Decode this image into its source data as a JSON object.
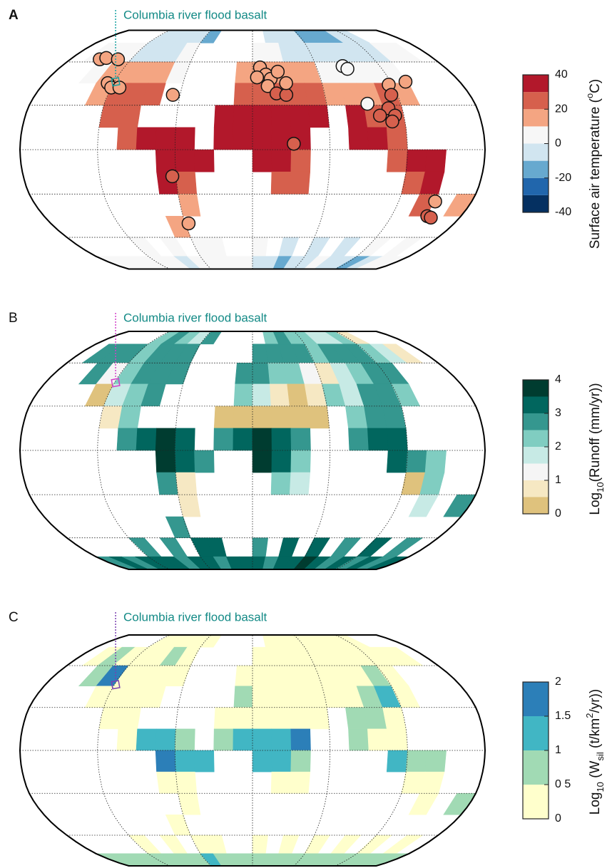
{
  "graticule": {
    "parallels": [
      -60,
      -30,
      0,
      30,
      60
    ],
    "meridians": [
      -120,
      -60,
      0,
      60,
      120
    ]
  },
  "cell_lon0": -180,
  "cell_lat0": 90,
  "cell_size": 15,
  "columbia_location": {
    "lon": -119,
    "lat": 46
  },
  "panels": [
    {
      "letter": "A",
      "annotation": "Columbia river flood basalt",
      "marker_color": "#17a2a2",
      "cells": [
        [
          null,
          null,
          null,
          null,
          -5,
          -5,
          -8,
          -5,
          -12,
          null,
          null,
          null,
          null,
          -5,
          -8,
          -10,
          -12,
          -15,
          -12,
          -10,
          -8,
          null,
          null,
          null
        ],
        [
          null,
          5,
          3,
          2,
          -2,
          -5,
          -3,
          0,
          null,
          null,
          null,
          null,
          5,
          2,
          -2,
          -5,
          -8,
          -10,
          -8,
          -5,
          -2,
          2,
          3,
          null
        ],
        [
          null,
          null,
          8,
          12,
          12,
          12,
          12,
          8,
          null,
          null,
          null,
          12,
          15,
          15,
          12,
          10,
          5,
          3,
          2,
          5,
          8,
          null,
          null,
          null
        ],
        [
          null,
          null,
          null,
          18,
          22,
          22,
          20,
          null,
          null,
          null,
          null,
          20,
          22,
          22,
          25,
          25,
          18,
          15,
          18,
          22,
          18,
          null,
          null,
          null
        ],
        [
          null,
          null,
          null,
          null,
          25,
          25,
          null,
          null,
          null,
          null,
          35,
          35,
          35,
          35,
          35,
          35,
          null,
          32,
          28,
          25,
          null,
          null,
          null,
          null
        ],
        [
          null,
          null,
          null,
          null,
          null,
          28,
          30,
          32,
          32,
          null,
          32,
          32,
          32,
          33,
          30,
          null,
          null,
          30,
          30,
          28,
          null,
          null,
          null,
          null
        ],
        [
          null,
          null,
          null,
          null,
          null,
          null,
          null,
          32,
          32,
          32,
          null,
          null,
          30,
          30,
          28,
          null,
          null,
          null,
          null,
          28,
          32,
          32,
          null,
          null
        ],
        [
          null,
          null,
          null,
          null,
          null,
          null,
          null,
          30,
          28,
          null,
          null,
          null,
          null,
          25,
          25,
          null,
          null,
          null,
          null,
          null,
          28,
          30,
          null,
          null
        ],
        [
          null,
          null,
          null,
          null,
          null,
          null,
          null,
          null,
          18,
          null,
          null,
          null,
          null,
          null,
          null,
          null,
          null,
          null,
          null,
          null,
          null,
          20,
          null,
          15
        ],
        [
          null,
          null,
          null,
          null,
          null,
          null,
          null,
          10,
          null,
          null,
          null,
          null,
          null,
          null,
          null,
          null,
          null,
          null,
          null,
          null,
          null,
          null,
          null,
          null
        ],
        [
          null,
          null,
          null,
          null,
          2,
          null,
          5,
          null,
          8,
          5,
          null,
          null,
          0,
          null,
          -3,
          null,
          -5,
          null,
          -2,
          null,
          0,
          null,
          3,
          null
        ],
        [
          5,
          5,
          8,
          5,
          2,
          0,
          -5,
          0,
          5,
          8,
          5,
          0,
          -5,
          -8,
          -12,
          -8,
          -5,
          0,
          -3,
          -8,
          -12,
          -5,
          0,
          5
        ]
      ],
      "sites": [
        {
          "lon": -151,
          "lat": 62,
          "value": 15
        },
        {
          "lon": -146,
          "lat": 63,
          "value": 14
        },
        {
          "lon": -133,
          "lat": 62,
          "value": 10
        },
        {
          "lon": -125,
          "lat": 45,
          "value": 14
        },
        {
          "lon": -120,
          "lat": 42,
          "value": 12
        },
        {
          "lon": -113,
          "lat": 42,
          "value": 15
        },
        {
          "lon": -66,
          "lat": 37,
          "value": 18
        },
        {
          "lon": -63,
          "lat": -18,
          "value": 22
        },
        {
          "lon": -57,
          "lat": -50,
          "value": 12
        },
        {
          "lon": 7,
          "lat": 56,
          "value": 12
        },
        {
          "lon": 12,
          "lat": 51,
          "value": 15
        },
        {
          "lon": 16,
          "lat": 48,
          "value": 14
        },
        {
          "lon": 23,
          "lat": 53,
          "value": 18
        },
        {
          "lon": 4,
          "lat": 49,
          "value": 16
        },
        {
          "lon": 13,
          "lat": 43,
          "value": 15
        },
        {
          "lon": 20,
          "lat": 38,
          "value": 20
        },
        {
          "lon": 28,
          "lat": 37,
          "value": 24
        },
        {
          "lon": 29,
          "lat": 45,
          "value": 18
        },
        {
          "lon": 32,
          "lat": 4,
          "value": 28
        },
        {
          "lon": 85,
          "lat": 57,
          "value": 5
        },
        {
          "lon": 88,
          "lat": 55,
          "value": 8
        },
        {
          "lon": 93,
          "lat": 31,
          "value": 2
        },
        {
          "lon": 117,
          "lat": 44,
          "value": 16
        },
        {
          "lon": 133,
          "lat": 46,
          "value": 16
        },
        {
          "lon": 115,
          "lat": 37,
          "value": 22
        },
        {
          "lon": 109,
          "lat": 28,
          "value": 24
        },
        {
          "lon": 101,
          "lat": 23,
          "value": 22
        },
        {
          "lon": 113,
          "lat": 23,
          "value": 24
        },
        {
          "lon": 110,
          "lat": 19,
          "value": 26
        },
        {
          "lon": 150,
          "lat": -35,
          "value": 16
        },
        {
          "lon": 151,
          "lat": -45,
          "value": 20
        },
        {
          "lon": 155,
          "lat": -46,
          "value": 22
        }
      ],
      "colorbar": {
        "label": [
          {
            "text": "Surface air  temperature ("
          },
          {
            "text": "o",
            "shift": "super"
          },
          {
            "text": "C)"
          }
        ],
        "ticks": [
          40,
          20,
          0,
          -20,
          -40
        ],
        "bounds": [
          -40,
          -30,
          -20,
          -10,
          0,
          10,
          20,
          30,
          40
        ],
        "colors": [
          "#053061",
          "#2166ac",
          "#67a9cf",
          "#d1e5f0",
          "#f7f7f7",
          "#f4a582",
          "#d6604d",
          "#b2182b"
        ]
      }
    },
    {
      "letter": "B",
      "annotation": "Columbia river flood basalt",
      "marker_color": "#d23fc8",
      "cells": [
        [
          null,
          null,
          null,
          null,
          2.2,
          2.5,
          2.2,
          1.8,
          2.5,
          null,
          null,
          null,
          null,
          2.2,
          2.5,
          2.2,
          2.0,
          1.5,
          1.8,
          2.2,
          0.8,
          null,
          null,
          null
        ],
        [
          null,
          2.5,
          2.8,
          2.5,
          2.2,
          2.5,
          2.8,
          2.5,
          null,
          null,
          null,
          null,
          2.5,
          2.8,
          2.8,
          2.5,
          2.2,
          2.5,
          2.8,
          2.5,
          2.2,
          1.8,
          0.8,
          null
        ],
        [
          null,
          null,
          2.8,
          1.2,
          2.2,
          2.5,
          2.8,
          2.8,
          null,
          null,
          null,
          2.8,
          2.5,
          2.2,
          2.0,
          1.2,
          0.8,
          1.5,
          2.2,
          2.8,
          2.5,
          null,
          null,
          null
        ],
        [
          null,
          null,
          null,
          0.3,
          1.5,
          2.2,
          2.5,
          null,
          null,
          null,
          null,
          2.2,
          1.8,
          0.8,
          0.3,
          0.5,
          2.2,
          1.5,
          2.8,
          2.5,
          2.2,
          null,
          null,
          null
        ],
        [
          null,
          null,
          null,
          null,
          0.8,
          2.2,
          null,
          null,
          null,
          null,
          0.3,
          0.2,
          0.3,
          0.3,
          0.2,
          0.3,
          null,
          2.2,
          2.8,
          2.5,
          null,
          null,
          null,
          null
        ],
        [
          null,
          null,
          null,
          null,
          null,
          2.5,
          3.2,
          3.5,
          3.2,
          null,
          2.8,
          3.2,
          3.5,
          3.2,
          2.5,
          null,
          null,
          2.8,
          3.2,
          3.2,
          null,
          null,
          null,
          null
        ],
        [
          null,
          null,
          null,
          null,
          null,
          null,
          null,
          3.5,
          3.2,
          2.8,
          null,
          null,
          3.5,
          3.2,
          2.2,
          null,
          null,
          null,
          null,
          3.2,
          2.8,
          2.2,
          null,
          null
        ],
        [
          null,
          null,
          null,
          null,
          null,
          null,
          null,
          2.5,
          0.8,
          null,
          null,
          null,
          null,
          2.2,
          1.5,
          null,
          null,
          null,
          null,
          null,
          0.3,
          2.2,
          null,
          null
        ],
        [
          null,
          null,
          null,
          null,
          null,
          null,
          null,
          null,
          0.5,
          null,
          null,
          null,
          null,
          null,
          null,
          null,
          null,
          null,
          null,
          null,
          null,
          1.5,
          null,
          2.5
        ],
        [
          null,
          null,
          null,
          null,
          null,
          null,
          null,
          2.5,
          null,
          null,
          null,
          null,
          null,
          null,
          null,
          null,
          null,
          null,
          null,
          null,
          null,
          null,
          null,
          null
        ],
        [
          null,
          null,
          null,
          null,
          2.8,
          null,
          2.8,
          null,
          3.0,
          3.0,
          null,
          null,
          2.8,
          null,
          3.2,
          null,
          3.0,
          null,
          2.8,
          null,
          3.0,
          null,
          2.8,
          null
        ],
        [
          2.8,
          3.0,
          2.8,
          3.0,
          3.2,
          3.0,
          2.8,
          3.0,
          3.0,
          2.8,
          3.0,
          3.2,
          3.0,
          2.8,
          3.0,
          3.2,
          3.5,
          3.0,
          2.8,
          3.0,
          2.8,
          3.0,
          2.8,
          3.0
        ]
      ],
      "sites": [],
      "colorbar": {
        "label": [
          {
            "text": "Log"
          },
          {
            "text": "10",
            "shift": "sub"
          },
          {
            "text": "(Runoff (mm/yr))"
          }
        ],
        "ticks": [
          4,
          3,
          2,
          1,
          0
        ],
        "bounds": [
          0,
          0.5,
          1,
          1.5,
          2,
          2.5,
          3,
          3.5,
          4
        ],
        "colors": [
          "#dfc27d",
          "#f6e8c3",
          "#f5f5f5",
          "#c7eae5",
          "#80cdc1",
          "#35978f",
          "#01665e",
          "#003c30"
        ]
      }
    },
    {
      "letter": "C",
      "annotation": "Columbia river flood basalt",
      "marker_color": "#7a3fb0",
      "cells": [
        [
          null,
          null,
          null,
          null,
          0.2,
          0.2,
          0.3,
          0.2,
          0.2,
          null,
          null,
          null,
          null,
          0.1,
          0.2,
          0.2,
          0.1,
          0.1,
          0.1,
          0.2,
          0.1,
          null,
          null,
          null
        ],
        [
          null,
          0.3,
          0.5,
          0.3,
          0.2,
          0.3,
          0.7,
          0.2,
          null,
          null,
          null,
          null,
          0.2,
          0.3,
          0.2,
          0.2,
          0.2,
          0.2,
          0.3,
          0.2,
          0.2,
          0.1,
          0.1,
          null
        ],
        [
          null,
          null,
          0.6,
          1.8,
          0.3,
          0.2,
          0.3,
          0.2,
          null,
          null,
          null,
          0.2,
          0.3,
          0.2,
          0.2,
          0.1,
          0.1,
          0.2,
          0.3,
          0.5,
          0.3,
          null,
          null,
          null
        ],
        [
          null,
          null,
          null,
          0.2,
          0.3,
          0.3,
          0.2,
          null,
          null,
          null,
          null,
          0.7,
          0.3,
          0.2,
          0.2,
          0.2,
          0.3,
          0.3,
          0.7,
          1.2,
          0.3,
          null,
          null,
          null
        ],
        [
          null,
          null,
          null,
          null,
          0.2,
          0.3,
          null,
          null,
          null,
          null,
          0.1,
          0.1,
          0.2,
          0.1,
          0.1,
          0.1,
          null,
          0.7,
          0.8,
          0.3,
          null,
          null,
          null,
          null
        ],
        [
          null,
          null,
          null,
          null,
          null,
          0.3,
          1.2,
          1.3,
          0.5,
          null,
          0.7,
          1.2,
          1.3,
          1.2,
          1.6,
          null,
          null,
          0.8,
          0.3,
          0.2,
          null,
          null,
          null,
          null
        ],
        [
          null,
          null,
          null,
          null,
          null,
          null,
          null,
          1.6,
          1.2,
          1.2,
          null,
          null,
          1.2,
          1.2,
          0.7,
          null,
          null,
          null,
          null,
          1.2,
          0.7,
          0.7,
          null,
          null
        ],
        [
          null,
          null,
          null,
          null,
          null,
          null,
          null,
          0.3,
          0.2,
          null,
          null,
          null,
          null,
          0.3,
          0.3,
          null,
          null,
          null,
          null,
          null,
          0.2,
          0.3,
          null,
          null
        ],
        [
          null,
          null,
          null,
          null,
          null,
          null,
          null,
          null,
          0.2,
          null,
          null,
          null,
          null,
          null,
          null,
          null,
          null,
          null,
          null,
          null,
          null,
          0.2,
          null,
          0.6
        ],
        [
          null,
          null,
          null,
          null,
          null,
          null,
          null,
          0.2,
          null,
          null,
          null,
          null,
          null,
          null,
          null,
          null,
          null,
          null,
          null,
          null,
          null,
          null,
          null,
          null
        ],
        [
          null,
          null,
          null,
          null,
          0.3,
          null,
          0.4,
          null,
          0.3,
          0.2,
          null,
          null,
          0.3,
          null,
          0.4,
          null,
          0.3,
          null,
          0.2,
          null,
          0.3,
          null,
          0.3,
          null
        ],
        [
          0.6,
          0.7,
          0.6,
          0.5,
          0.6,
          0.7,
          0.6,
          0.8,
          1.2,
          0.6,
          0.5,
          0.7,
          0.6,
          0.5,
          0.6,
          0.7,
          0.6,
          0.5,
          0.6,
          0.7,
          0.6,
          0.5,
          0.6,
          0.7
        ]
      ],
      "sites": [],
      "colorbar": {
        "label": [
          {
            "text": "Log"
          },
          {
            "text": "10",
            "shift": "sub"
          },
          {
            "text": " (W"
          },
          {
            "text": "sil",
            "shift": "sub"
          },
          {
            "text": " (t/km"
          },
          {
            "text": "2",
            "shift": "super"
          },
          {
            "text": "/yr))"
          }
        ],
        "ticks": [
          2,
          1.5,
          1,
          {
            "value": 0.5,
            "label": "0 5"
          },
          0
        ],
        "bounds": [
          0,
          0.5,
          1,
          1.5,
          2
        ],
        "colors": [
          "#ffffcc",
          "#a1dab4",
          "#41b6c4",
          "#2c7fb8"
        ]
      }
    }
  ]
}
